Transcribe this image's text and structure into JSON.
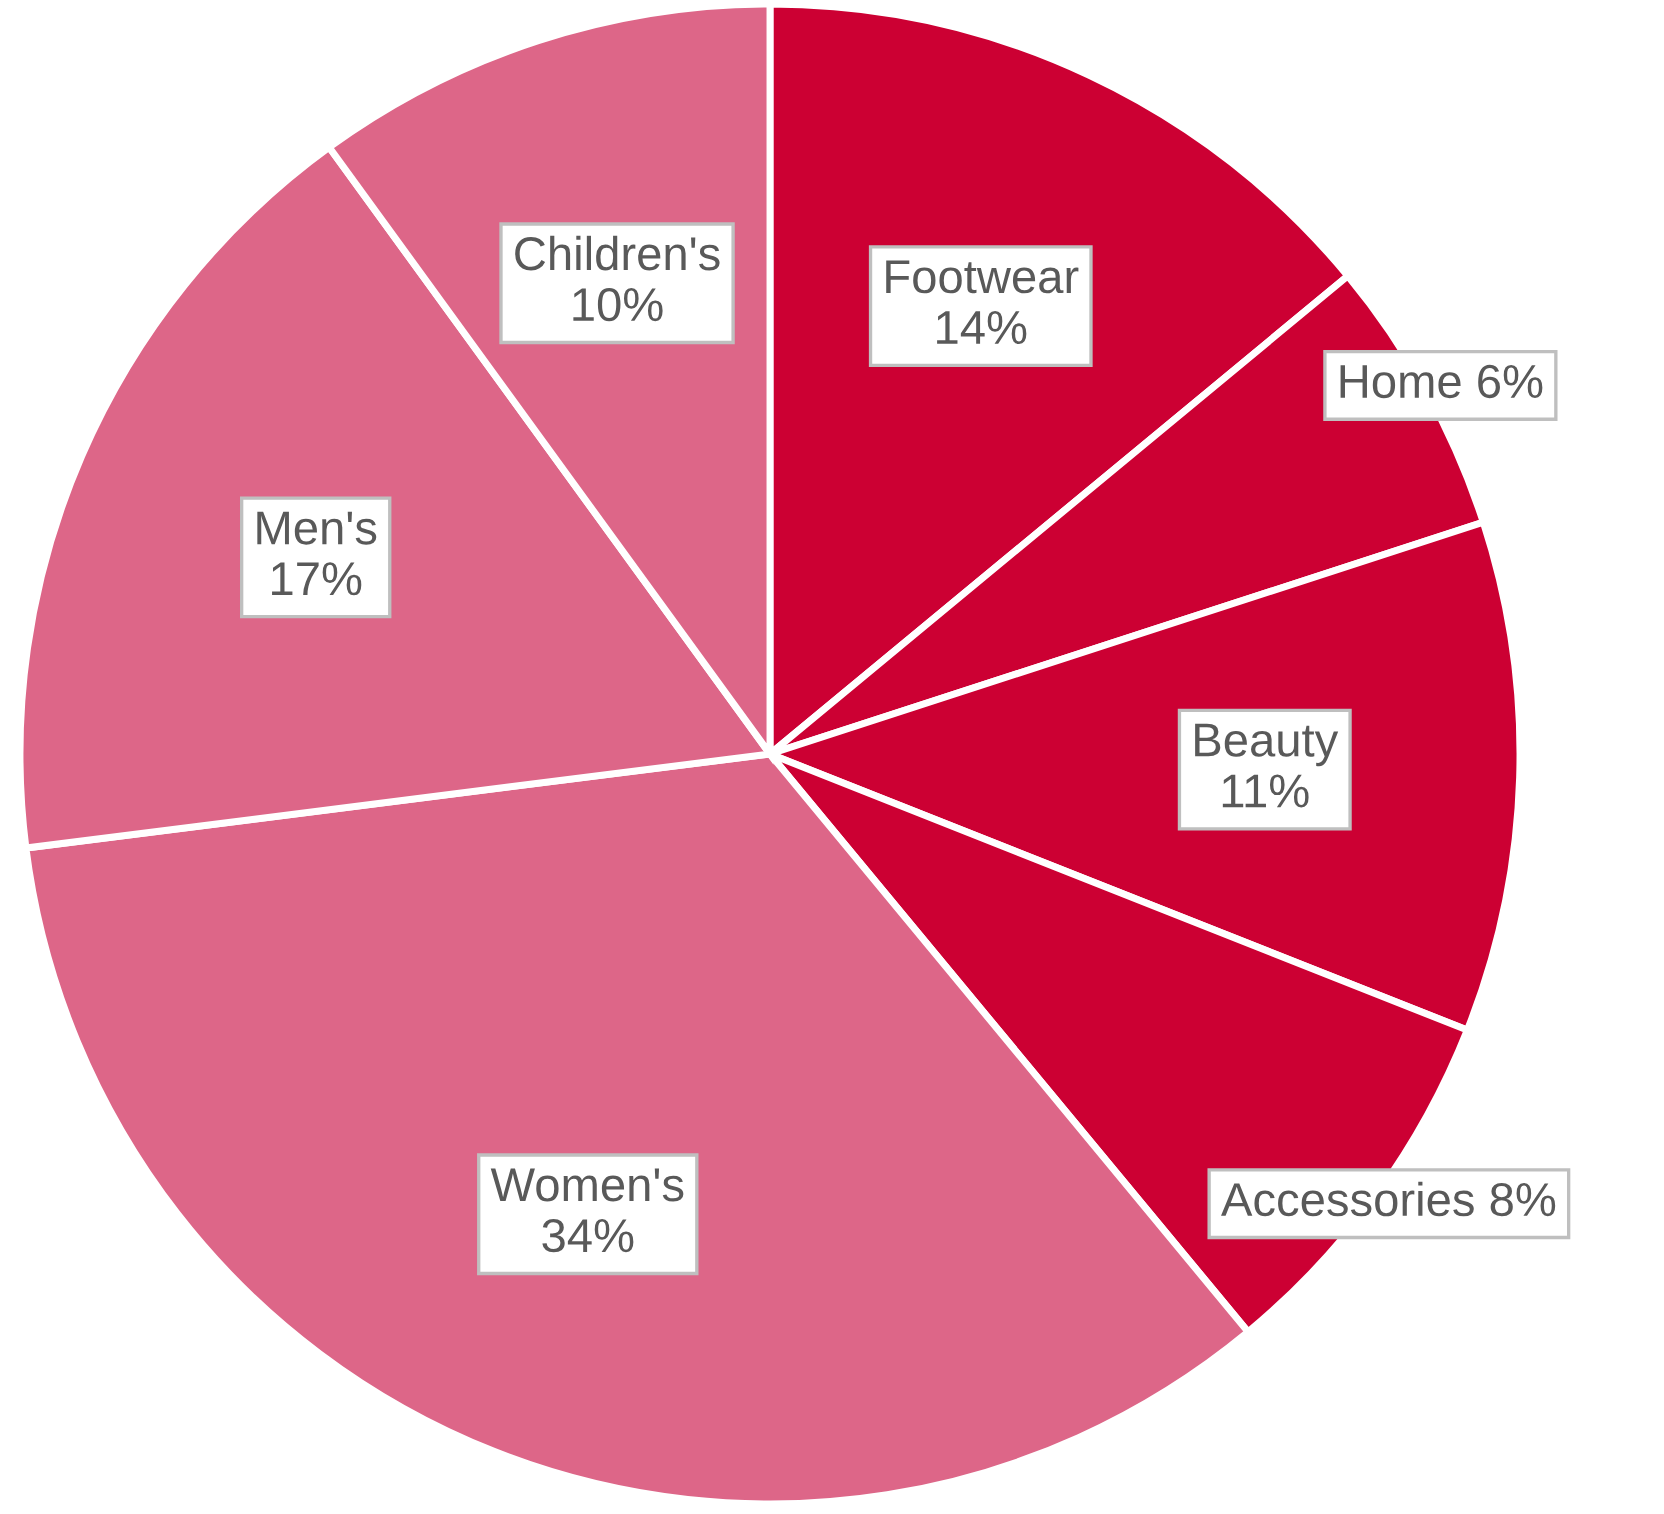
{
  "chart_data": {
    "type": "pie",
    "categories": [
      "Footwear",
      "Home",
      "Beauty",
      "Accessories",
      "Women's",
      "Men's",
      "Children's"
    ],
    "values": [
      14,
      6,
      11,
      8,
      34,
      17,
      10
    ],
    "value_labels": [
      "14%",
      "6%",
      "11%",
      "8%",
      "34%",
      "17%",
      "10%"
    ],
    "colors": [
      "#cc0033",
      "#cc0033",
      "#cc0033",
      "#cc0033",
      "#dd6688",
      "#dd6688",
      "#dd6688"
    ],
    "legend": false
  }
}
